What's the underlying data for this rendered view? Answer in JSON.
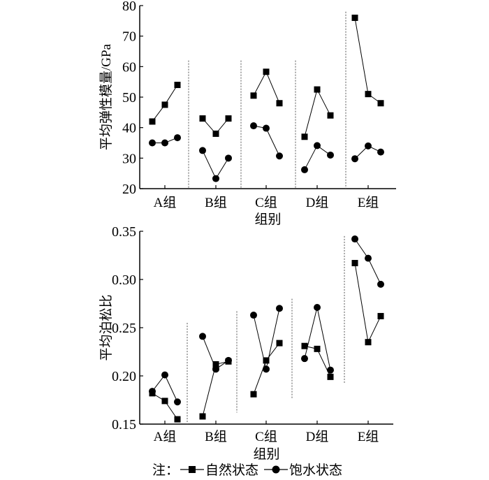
{
  "chart_data": [
    {
      "type": "line",
      "ylabel": "平均弹性模量/GPa",
      "xlabel": "组别",
      "ylim": [
        20,
        80
      ],
      "yticks": [
        20,
        30,
        40,
        50,
        60,
        70,
        80
      ],
      "ytick_labels": [
        "20",
        "30",
        "40",
        "50",
        "60",
        "70",
        "80"
      ],
      "categories": [
        "A组",
        "B组",
        "C组",
        "D组",
        "E组"
      ],
      "grid": false,
      "series": [
        {
          "name": "自然状态",
          "marker": "square",
          "values": [
            [
              42,
              47.5,
              54
            ],
            [
              43,
              38,
              43
            ],
            [
              50.5,
              58.3,
              48
            ],
            [
              37,
              52.5,
              44
            ],
            [
              76,
              51,
              48
            ]
          ]
        },
        {
          "name": "饱水状态",
          "marker": "circle",
          "values": [
            [
              35,
              35,
              36.7
            ],
            [
              32.5,
              23.3,
              30
            ],
            [
              40.6,
              39.8,
              30.7
            ],
            [
              26.2,
              34.1,
              31
            ],
            [
              29.8,
              34,
              32
            ]
          ]
        }
      ]
    },
    {
      "type": "line",
      "ylabel": "平均泊松比",
      "xlabel": "组别",
      "ylim": [
        0.15,
        0.35
      ],
      "yticks": [
        0.15,
        0.2,
        0.25,
        0.3,
        0.35
      ],
      "ytick_labels": [
        "0.15",
        "0.20",
        "0.25",
        "0.30",
        "0.35"
      ],
      "categories": [
        "A组",
        "B组",
        "C组",
        "D组",
        "E组"
      ],
      "grid": false,
      "series": [
        {
          "name": "自然状态",
          "marker": "square",
          "values": [
            [
              0.182,
              0.174,
              0.155
            ],
            [
              0.158,
              0.212,
              0.215
            ],
            [
              0.181,
              0.216,
              0.234
            ],
            [
              0.231,
              0.228,
              0.199
            ],
            [
              0.317,
              0.235,
              0.262
            ]
          ]
        },
        {
          "name": "饱水状态",
          "marker": "circle",
          "values": [
            [
              0.184,
              0.201,
              0.173
            ],
            [
              0.241,
              0.207,
              0.216
            ],
            [
              0.263,
              0.207,
              0.27
            ],
            [
              0.218,
              0.271,
              0.206
            ],
            [
              0.342,
              0.322,
              0.295
            ]
          ]
        }
      ]
    }
  ],
  "legend": {
    "prefix": "注：",
    "items": [
      {
        "label": "自然状态",
        "marker": "square"
      },
      {
        "label": "饱水状态",
        "marker": "circle"
      }
    ],
    "placement": "bottom"
  },
  "colors": {
    "ink": "#000000",
    "divider": "#555555"
  }
}
